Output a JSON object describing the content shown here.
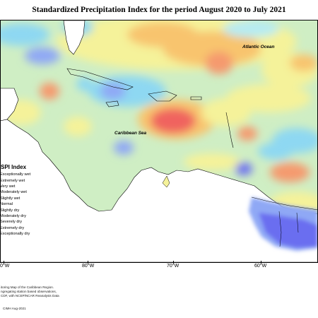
{
  "title": "Standardized Precipitation Index for the period August 2020 to July 2021",
  "map_labels": {
    "atlantic": "Atlantic Ocean",
    "caribbean": "Caribbean Sea"
  },
  "legend": {
    "title": "SPI Index",
    "items": [
      {
        "label": "Exceptionally wet",
        "color": "#3a2fd0"
      },
      {
        "label": "Extremely wet",
        "color": "#6a6ef0"
      },
      {
        "label": "Very wet",
        "color": "#8fa8f5"
      },
      {
        "label": "Moderately wet",
        "color": "#8ed8f2"
      },
      {
        "label": "Slightly wet",
        "color": "#b6ecf2"
      },
      {
        "label": "Normal",
        "color": "#cfeec4"
      },
      {
        "label": "Slightly dry",
        "color": "#f5f29a"
      },
      {
        "label": "Moderately dry",
        "color": "#f8c46e"
      },
      {
        "label": "Severely dry",
        "color": "#f59a6e"
      },
      {
        "label": "Extremely dry",
        "color": "#f0645e"
      },
      {
        "label": "Exceptionally dry",
        "color": "#c8283a"
      }
    ]
  },
  "longitude_ticks": [
    "80°W",
    "70°W",
    "60°W"
  ],
  "longitude_tick_partial": "0°W",
  "footer_lines": [
    "itoring Map of the Caribbean Region.",
    "ngregating station based observations,",
    "CDF, with NCEP/NCAR Reanalysis Data"
  ],
  "copyright": "CIMH Aug-2021"
}
